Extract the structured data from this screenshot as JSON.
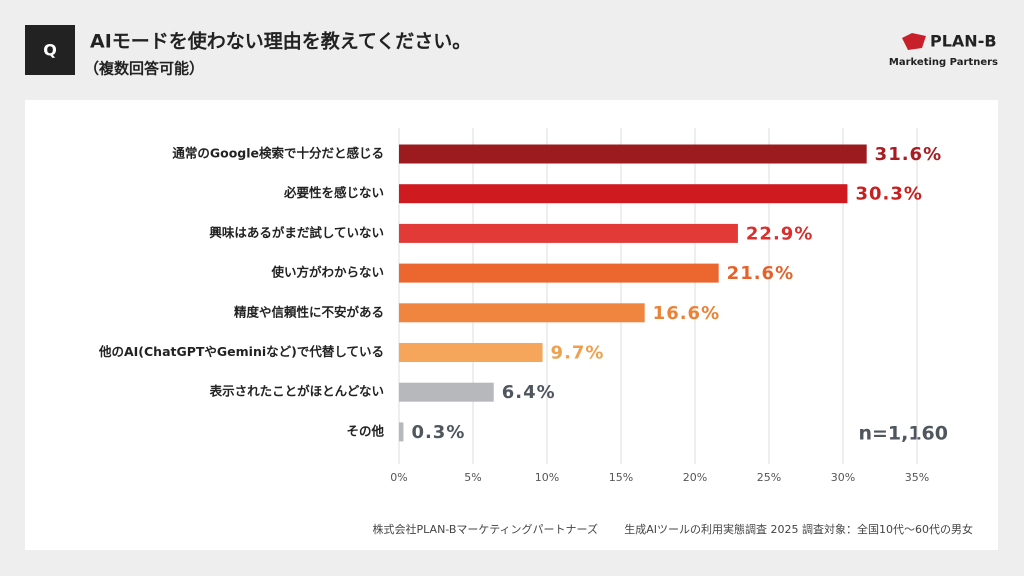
{
  "header": {
    "badge": "Q",
    "title": "AIモードを使わない理由を教えてください。",
    "subtitle": "（複数回答可能）"
  },
  "logo": {
    "name": "PLAN-B",
    "tagline": "Marketing Partners"
  },
  "chart_data": {
    "type": "hbar",
    "categories": [
      "通常のGoogle検索で十分だと感じる",
      "必要性を感じない",
      "興味はあるがまだ試していない",
      "使い方がわからない",
      "精度や信頼性に不安がある",
      "他のAI(ChatGPTやGeminiなど)で代替している",
      "表示されたことがほとんどない",
      "その他"
    ],
    "values": [
      31.6,
      30.3,
      22.9,
      21.6,
      16.6,
      9.7,
      6.4,
      0.3
    ],
    "value_labels": [
      "31.6%",
      "30.3%",
      "22.9%",
      "21.6%",
      "16.6%",
      "9.7%",
      "6.4%",
      "0.3%"
    ],
    "colors": [
      "#9b1b1f",
      "#cf1a20",
      "#e23a37",
      "#ec6630",
      "#f08540",
      "#f5a65a",
      "#b6b8bb",
      "#b6b8bb"
    ],
    "label_colors": [
      "#a81d22",
      "#c8201f",
      "#d9302e",
      "#e5622b",
      "#ec8238",
      "#efa04f",
      "#4f565e",
      "#4f565e"
    ],
    "xlim": [
      0,
      35
    ],
    "xticks": [
      {
        "value": 0,
        "label": "0%"
      },
      {
        "value": 5,
        "label": "5%"
      },
      {
        "value": 10,
        "label": "10%"
      },
      {
        "value": 15,
        "label": "15%"
      },
      {
        "value": 20,
        "label": "20%"
      },
      {
        "value": 25,
        "label": "25%"
      },
      {
        "value": 30,
        "label": "30%"
      },
      {
        "value": 35,
        "label": "35%"
      }
    ],
    "grid": true,
    "annotation": "n=1,160"
  },
  "footer": {
    "source": "株式会社PLAN-Bマーケティングパートナーズ",
    "survey": "生成AIツールの利用実態調査 2025 調査対象：全国10代〜60代の男女"
  }
}
